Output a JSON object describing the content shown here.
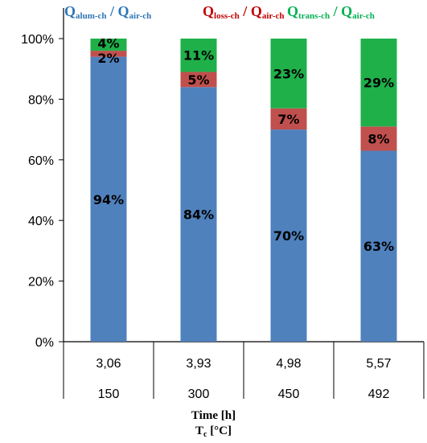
{
  "chart_data": {
    "type": "bar",
    "stacked": true,
    "percent": true,
    "ylim": [
      0,
      100
    ],
    "yticks": [
      "0%",
      "20%",
      "40%",
      "60%",
      "80%",
      "100%"
    ],
    "categories_row1": [
      "3,06",
      "3,93",
      "4,98",
      "5,57"
    ],
    "categories_row2": [
      "150",
      "300",
      "450",
      "492"
    ],
    "xlabel_line1": "Time [h]",
    "xlabel_line2_main": "T",
    "xlabel_line2_sub": "c",
    "xlabel_line2_rest": " [°C]",
    "legend": [
      {
        "main": "Q",
        "sub": "alum-ch",
        "color": "#2E75B6"
      },
      {
        "main": "Q",
        "sub": "loss-ch",
        "color": "#C00000"
      },
      {
        "main": "Q",
        "sub": "trans-ch",
        "color": "#00B050"
      }
    ],
    "legend_denominator": {
      "main": "Q",
      "sub": "air-ch"
    },
    "legend_separator": " / ",
    "series": [
      {
        "values": [
          94,
          84,
          70,
          63
        ],
        "labels": [
          "94%",
          "84%",
          "70%",
          "63%"
        ],
        "color": "#4F81BD"
      },
      {
        "values": [
          2,
          5,
          7,
          8
        ],
        "labels": [
          "2%",
          "5%",
          "7%",
          "8%"
        ],
        "color": "#C0504D"
      },
      {
        "values": [
          4,
          11,
          23,
          29
        ],
        "labels": [
          "4%",
          "11%",
          "23%",
          "29%"
        ],
        "color": "#1FB04A"
      }
    ]
  }
}
